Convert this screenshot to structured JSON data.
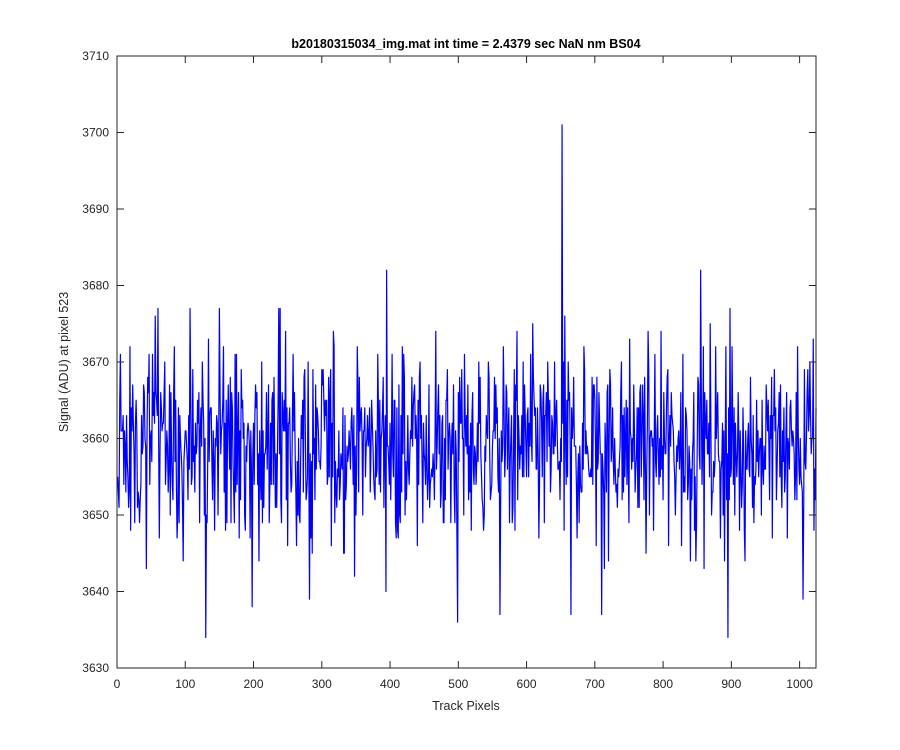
{
  "chart_data": {
    "type": "line",
    "title": "b20180315034_img.mat int time = 2.4379 sec  NaN nm BS04",
    "xlabel": "Track Pixels",
    "ylabel": "Signal (ADU) at pixel 523",
    "xlim": [
      0,
      1024
    ],
    "ylim": [
      3630,
      3710
    ],
    "xticks": [
      "0",
      "100",
      "200",
      "300",
      "400",
      "500",
      "600",
      "700",
      "800",
      "900",
      "1000"
    ],
    "yticks": [
      "3630",
      "3640",
      "3650",
      "3660",
      "3670",
      "3680",
      "3690",
      "3700",
      "3710"
    ],
    "grid": false,
    "series": [
      {
        "color": "#0000ff",
        "x_start": 1,
        "x_step": 1,
        "count": 1024,
        "y_mean": 3659,
        "y_noise_sd": 6.5,
        "notable_points": [
          {
            "x": 130,
            "y": 3634
          },
          {
            "x": 198,
            "y": 3638
          },
          {
            "x": 282,
            "y": 3639
          },
          {
            "x": 395,
            "y": 3682
          },
          {
            "x": 499,
            "y": 3636
          },
          {
            "x": 561,
            "y": 3637
          },
          {
            "x": 652,
            "y": 3701
          },
          {
            "x": 665,
            "y": 3637
          },
          {
            "x": 710,
            "y": 3637
          },
          {
            "x": 855,
            "y": 3682
          },
          {
            "x": 895,
            "y": 3634
          },
          {
            "x": 1005,
            "y": 3639
          }
        ]
      }
    ]
  }
}
